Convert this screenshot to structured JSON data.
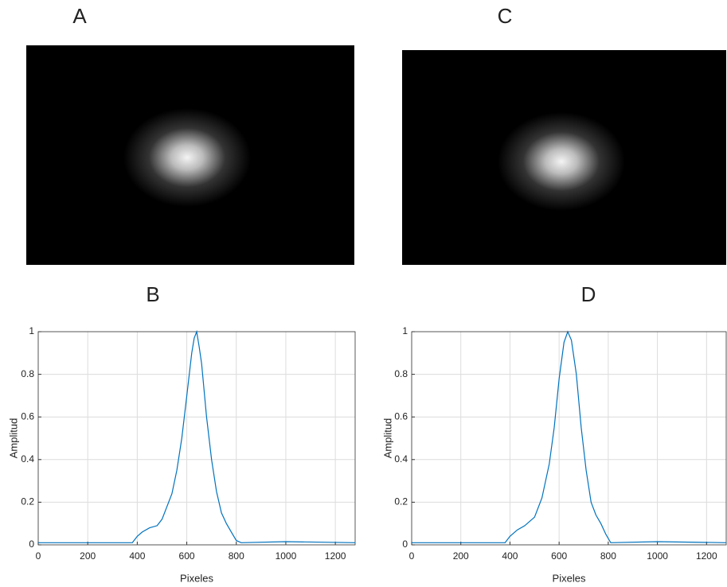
{
  "panel_labels": [
    "A",
    "C",
    "B",
    "D"
  ],
  "chart_data": [
    {
      "type": "line",
      "x_label": "Pixeles",
      "y_label": "Amplitud",
      "color": "#0072bd",
      "grid": true,
      "xlim": [
        0,
        1280
      ],
      "ylim": [
        0,
        1
      ],
      "xticks": [
        0,
        200,
        400,
        600,
        800,
        1000,
        1200
      ],
      "yticks": [
        0,
        0.2,
        0.4,
        0.6,
        0.8,
        1
      ],
      "x": [
        0,
        380,
        400,
        420,
        450,
        480,
        500,
        520,
        540,
        560,
        580,
        600,
        620,
        630,
        640,
        650,
        660,
        680,
        700,
        720,
        740,
        760,
        780,
        800,
        820,
        1000,
        1280
      ],
      "values": [
        0.01,
        0.01,
        0.04,
        0.06,
        0.08,
        0.09,
        0.12,
        0.18,
        0.24,
        0.35,
        0.5,
        0.7,
        0.9,
        0.97,
        1.0,
        0.93,
        0.85,
        0.6,
        0.4,
        0.25,
        0.15,
        0.1,
        0.06,
        0.02,
        0.01,
        0.015,
        0.01
      ]
    },
    {
      "type": "line",
      "x_label": "Pixeles",
      "y_label": "Amplitud",
      "color": "#0072bd",
      "grid": true,
      "xlim": [
        0,
        1280
      ],
      "ylim": [
        0,
        1
      ],
      "xticks": [
        0,
        200,
        400,
        600,
        800,
        1000,
        1200
      ],
      "yticks": [
        0,
        0.2,
        0.4,
        0.6,
        0.8,
        1
      ],
      "x": [
        0,
        380,
        400,
        430,
        460,
        500,
        530,
        560,
        580,
        600,
        620,
        635,
        650,
        670,
        690,
        710,
        730,
        750,
        770,
        790,
        810,
        1000,
        1280
      ],
      "values": [
        0.01,
        0.01,
        0.04,
        0.07,
        0.09,
        0.13,
        0.22,
        0.38,
        0.55,
        0.78,
        0.95,
        1.0,
        0.96,
        0.8,
        0.55,
        0.35,
        0.2,
        0.14,
        0.1,
        0.05,
        0.01,
        0.015,
        0.01
      ]
    }
  ]
}
